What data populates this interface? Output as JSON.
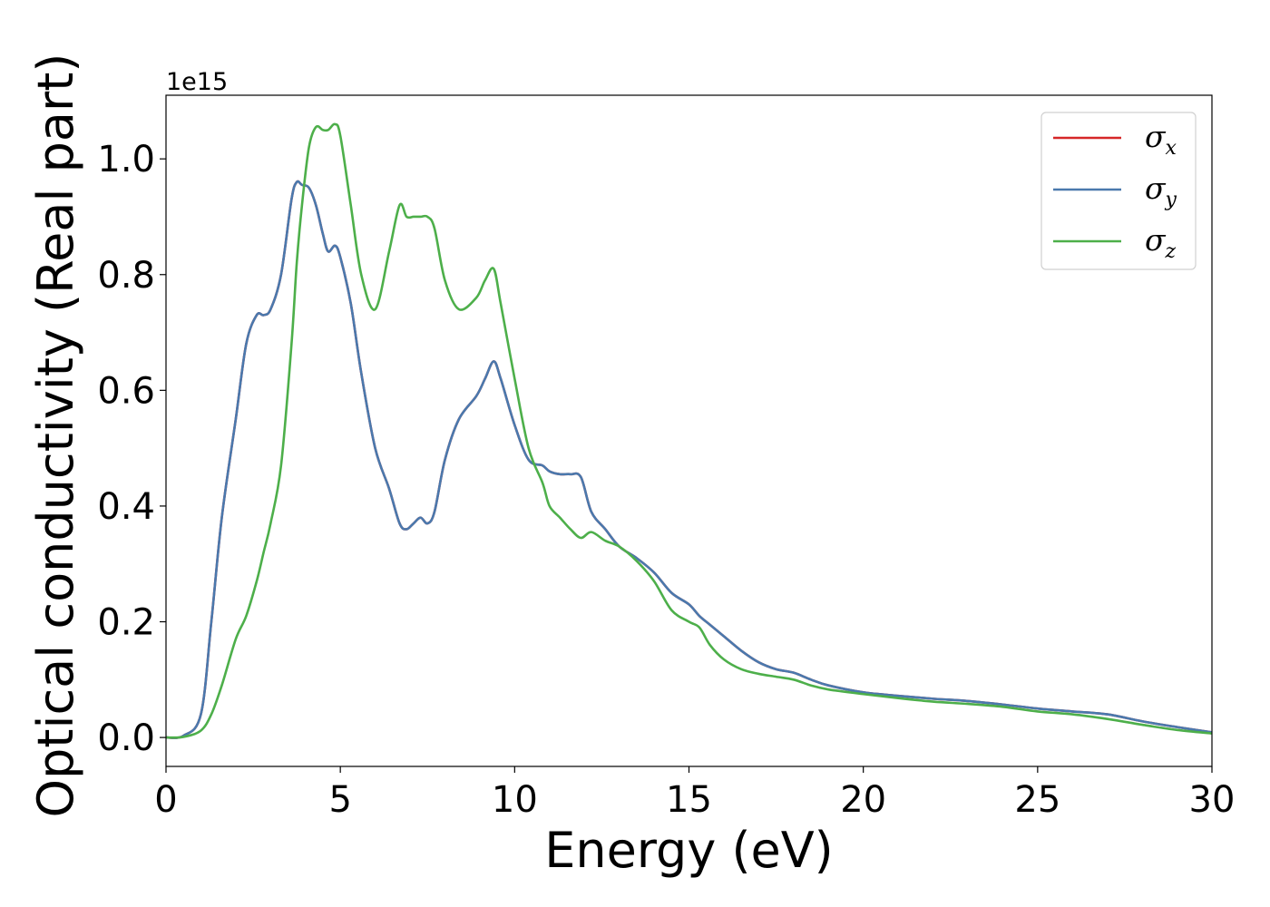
{
  "chart_data": {
    "type": "line",
    "title": "",
    "xlabel": "Energy (eV)",
    "ylabel": "Optical conductivity (Real part)",
    "y_offset_text": "1e15",
    "xlim": [
      0,
      30
    ],
    "ylim": [
      -0.05,
      1.11
    ],
    "x_ticks": [
      0,
      5,
      10,
      15,
      20,
      25,
      30
    ],
    "x_tick_labels": [
      "0",
      "5",
      "10",
      "15",
      "20",
      "25",
      "30"
    ],
    "y_ticks": [
      0.0,
      0.2,
      0.4,
      0.6,
      0.8,
      1.0
    ],
    "y_tick_labels": [
      "0.0",
      "0.2",
      "0.4",
      "0.6",
      "0.8",
      "1.0"
    ],
    "grid": false,
    "legend_position": "top-right",
    "x": [
      0,
      0.5,
      1.0,
      1.3,
      1.6,
      2.0,
      2.3,
      2.6,
      2.8,
      3.0,
      3.3,
      3.6,
      3.75,
      3.9,
      4.1,
      4.3,
      4.5,
      4.65,
      4.85,
      5.0,
      5.3,
      5.6,
      6.0,
      6.4,
      6.7,
      6.9,
      7.1,
      7.3,
      7.5,
      7.7,
      8.0,
      8.4,
      8.9,
      9.15,
      9.4,
      9.6,
      10.0,
      10.4,
      10.8,
      11.0,
      11.3,
      11.6,
      11.9,
      12.2,
      12.6,
      13.0,
      13.5,
      14.0,
      14.5,
      15.0,
      15.3,
      15.6,
      16.0,
      16.5,
      17.0,
      17.5,
      18.0,
      18.5,
      19.0,
      20.0,
      21.0,
      22.0,
      23.0,
      24.0,
      25.0,
      26.0,
      27.0,
      28.0,
      29.0,
      30.0
    ],
    "legend": [
      {
        "label": "σ",
        "sub": "x",
        "color": "#d62728"
      },
      {
        "label": "σ",
        "sub": "y",
        "color": "#4a79ad"
      },
      {
        "label": "σ",
        "sub": "z",
        "color": "#4daf4a"
      }
    ],
    "series": [
      {
        "color": "#d62728",
        "values": [
          0.0,
          0.003,
          0.04,
          0.2,
          0.38,
          0.55,
          0.68,
          0.73,
          0.73,
          0.74,
          0.8,
          0.93,
          0.96,
          0.955,
          0.95,
          0.92,
          0.87,
          0.84,
          0.85,
          0.83,
          0.75,
          0.63,
          0.5,
          0.43,
          0.37,
          0.36,
          0.37,
          0.38,
          0.37,
          0.39,
          0.48,
          0.55,
          0.59,
          0.62,
          0.65,
          0.62,
          0.54,
          0.48,
          0.47,
          0.46,
          0.455,
          0.455,
          0.45,
          0.39,
          0.36,
          0.33,
          0.31,
          0.285,
          0.25,
          0.23,
          0.21,
          0.195,
          0.175,
          0.15,
          0.13,
          0.118,
          0.112,
          0.1,
          0.09,
          0.078,
          0.072,
          0.067,
          0.063,
          0.057,
          0.05,
          0.045,
          0.04,
          0.028,
          0.018,
          0.009
        ]
      },
      {
        "color": "#4a79ad",
        "values": [
          0.0,
          0.003,
          0.04,
          0.2,
          0.38,
          0.55,
          0.68,
          0.73,
          0.73,
          0.74,
          0.8,
          0.93,
          0.96,
          0.955,
          0.95,
          0.92,
          0.87,
          0.84,
          0.85,
          0.83,
          0.75,
          0.63,
          0.5,
          0.43,
          0.37,
          0.36,
          0.37,
          0.38,
          0.37,
          0.39,
          0.48,
          0.55,
          0.59,
          0.62,
          0.65,
          0.62,
          0.54,
          0.48,
          0.47,
          0.46,
          0.455,
          0.455,
          0.45,
          0.39,
          0.36,
          0.33,
          0.31,
          0.285,
          0.25,
          0.23,
          0.21,
          0.195,
          0.175,
          0.15,
          0.13,
          0.118,
          0.112,
          0.1,
          0.09,
          0.078,
          0.072,
          0.067,
          0.063,
          0.057,
          0.05,
          0.045,
          0.04,
          0.028,
          0.018,
          0.009
        ]
      },
      {
        "color": "#4daf4a",
        "values": [
          0.0,
          0.001,
          0.012,
          0.04,
          0.09,
          0.17,
          0.21,
          0.27,
          0.32,
          0.37,
          0.47,
          0.68,
          0.82,
          0.92,
          1.02,
          1.055,
          1.05,
          1.05,
          1.06,
          1.04,
          0.92,
          0.8,
          0.74,
          0.84,
          0.92,
          0.9,
          0.9,
          0.9,
          0.9,
          0.88,
          0.79,
          0.74,
          0.76,
          0.79,
          0.81,
          0.75,
          0.62,
          0.5,
          0.44,
          0.4,
          0.38,
          0.36,
          0.345,
          0.355,
          0.34,
          0.33,
          0.305,
          0.27,
          0.22,
          0.2,
          0.19,
          0.16,
          0.135,
          0.118,
          0.11,
          0.105,
          0.1,
          0.09,
          0.083,
          0.075,
          0.068,
          0.062,
          0.058,
          0.053,
          0.045,
          0.04,
          0.032,
          0.022,
          0.013,
          0.007
        ]
      }
    ]
  }
}
